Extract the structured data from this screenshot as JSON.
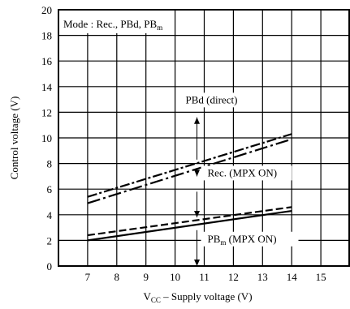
{
  "chart_data": {
    "type": "line",
    "xlabel": {
      "main": "V",
      "sub": "CC",
      "rest": " – Supply voltage (V)"
    },
    "ylabel": "Control voltage (V)",
    "xlim": [
      6,
      16
    ],
    "ylim": [
      0,
      20
    ],
    "x_ticks": [
      "7",
      "8",
      "9",
      "10",
      "11",
      "12",
      "13",
      "14",
      "15"
    ],
    "x_tick_values": [
      7,
      8,
      9,
      10,
      11,
      12,
      13,
      14,
      15
    ],
    "y_ticks": [
      "0",
      "2",
      "4",
      "6",
      "8",
      "10",
      "12",
      "14",
      "16",
      "18",
      "20"
    ],
    "y_tick_values": [
      0,
      2,
      4,
      6,
      8,
      10,
      12,
      14,
      16,
      18,
      20
    ],
    "grid": true,
    "mode_box": {
      "prefix": "Mode : Rec., PBd, PB",
      "sub": "m"
    },
    "series": [
      {
        "style": "dash-dot",
        "x": [
          7,
          14
        ],
        "y": [
          5.4,
          10.3
        ]
      },
      {
        "style": "dash-dot-long",
        "x": [
          7,
          14
        ],
        "y": [
          4.9,
          9.9
        ]
      },
      {
        "style": "dashed",
        "x": [
          7,
          14
        ],
        "y": [
          2.4,
          4.6
        ]
      },
      {
        "style": "solid",
        "x": [
          7,
          14
        ],
        "y": [
          2.0,
          4.3
        ]
      }
    ],
    "annotations": [
      {
        "id": "pbd",
        "text": "PBd (direct)",
        "x": 10.75,
        "y": 12.7
      },
      {
        "id": "rec",
        "text": "Rec. (MPX ON)",
        "x": 11.0,
        "y": 7.0
      },
      {
        "id": "pbm",
        "main": "PB",
        "sub": "m",
        "rest": "  (MPX ON)",
        "x": 11.0,
        "y": 1.85
      }
    ],
    "arrows": [
      {
        "x": 10.75,
        "y_from": 8.3,
        "y_to": 11.6,
        "dir": "up"
      },
      {
        "x": 10.75,
        "y_from": 7.6,
        "y_to": 7.0,
        "dir": "down"
      },
      {
        "x": 10.75,
        "y_from": 5.8,
        "y_to": 3.8,
        "dir": "down"
      },
      {
        "x": 10.75,
        "y_from": 2.8,
        "y_to": 0.0,
        "dir": "down"
      }
    ]
  }
}
